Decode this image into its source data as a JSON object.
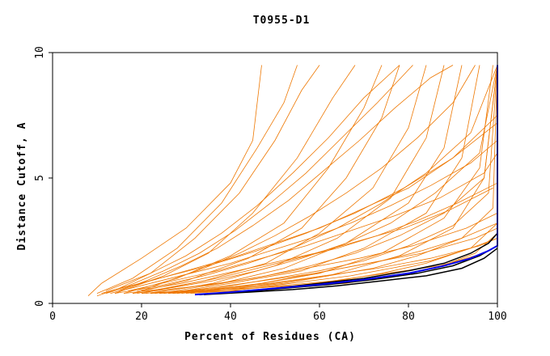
{
  "chart_data": {
    "type": "line",
    "title": "T0955-D1",
    "xlabel": "Percent of Residues (CA)",
    "ylabel": "Distance Cutoff, A",
    "xlim": [
      0,
      100
    ],
    "ylim": [
      0,
      10
    ],
    "x_ticks": [
      "0",
      "20",
      "40",
      "60",
      "80",
      "100"
    ],
    "y_ticks": [
      "0",
      "5",
      "10"
    ],
    "grid": false,
    "legend": "none",
    "colors": {
      "background": "#ffffff",
      "axis": "#000000",
      "orange": "#ee7700",
      "black": "#000000",
      "blue": "#0000ee"
    },
    "series": [
      {
        "color": "orange",
        "x": [
          8,
          11,
          20,
          30,
          40,
          45,
          47
        ],
        "y": [
          0.3,
          0.8,
          1.8,
          3.0,
          4.8,
          6.5,
          9.5
        ]
      },
      {
        "color": "orange",
        "x": [
          10,
          18,
          28,
          38,
          46,
          52,
          55
        ],
        "y": [
          0.4,
          1.0,
          2.2,
          4.0,
          6.2,
          8.0,
          9.5
        ]
      },
      {
        "color": "orange",
        "x": [
          12,
          22,
          32,
          42,
          50,
          56,
          60
        ],
        "y": [
          0.5,
          1.2,
          2.6,
          4.4,
          6.5,
          8.5,
          9.5
        ]
      },
      {
        "color": "orange",
        "x": [
          14,
          25,
          35,
          45,
          55,
          63,
          68
        ],
        "y": [
          0.4,
          1.1,
          2.0,
          3.6,
          5.8,
          8.2,
          9.5
        ]
      },
      {
        "color": "orange",
        "x": [
          16,
          28,
          40,
          52,
          62,
          70,
          74
        ],
        "y": [
          0.4,
          1.0,
          1.9,
          3.2,
          5.4,
          7.8,
          9.5
        ]
      },
      {
        "color": "orange",
        "x": [
          18,
          30,
          44,
          56,
          66,
          74,
          78
        ],
        "y": [
          0.4,
          0.9,
          1.8,
          3.0,
          5.0,
          7.4,
          9.5
        ]
      },
      {
        "color": "orange",
        "x": [
          20,
          34,
          48,
          60,
          72,
          80,
          84
        ],
        "y": [
          0.4,
          0.9,
          1.6,
          2.8,
          4.6,
          7.0,
          9.5
        ]
      },
      {
        "color": "orange",
        "x": [
          22,
          36,
          50,
          64,
          76,
          84,
          88
        ],
        "y": [
          0.4,
          0.8,
          1.5,
          2.6,
          4.2,
          6.6,
          9.5
        ]
      },
      {
        "color": "orange",
        "x": [
          24,
          38,
          52,
          66,
          80,
          88,
          92
        ],
        "y": [
          0.4,
          0.8,
          1.4,
          2.4,
          4.0,
          6.2,
          9.5
        ]
      },
      {
        "color": "orange",
        "x": [
          26,
          40,
          56,
          70,
          84,
          92,
          96
        ],
        "y": [
          0.4,
          0.8,
          1.3,
          2.2,
          3.6,
          5.8,
          9.5
        ]
      },
      {
        "color": "orange",
        "x": [
          28,
          44,
          60,
          74,
          88,
          96,
          99
        ],
        "y": [
          0.4,
          0.7,
          1.2,
          2.0,
          3.4,
          5.4,
          9.5
        ]
      },
      {
        "color": "orange",
        "x": [
          30,
          46,
          62,
          78,
          90,
          97,
          100
        ],
        "y": [
          0.4,
          0.7,
          1.1,
          1.9,
          3.0,
          5.0,
          9.5
        ]
      },
      {
        "color": "orange",
        "x": [
          14,
          24,
          34,
          44,
          54,
          64,
          74,
          84,
          94,
          100
        ],
        "y": [
          0.4,
          0.7,
          1.1,
          1.6,
          2.2,
          3.0,
          4.0,
          5.2,
          6.8,
          9.5
        ]
      },
      {
        "color": "orange",
        "x": [
          16,
          26,
          36,
          46,
          56,
          66,
          76,
          86,
          96,
          100
        ],
        "y": [
          0.4,
          0.6,
          0.9,
          1.3,
          1.8,
          2.4,
          3.2,
          4.4,
          6.0,
          9.5
        ]
      },
      {
        "color": "orange",
        "x": [
          18,
          28,
          38,
          48,
          58,
          68,
          78,
          88,
          97,
          100
        ],
        "y": [
          0.4,
          0.6,
          0.8,
          1.1,
          1.5,
          2.0,
          2.7,
          3.6,
          5.0,
          9.5
        ]
      },
      {
        "color": "orange",
        "x": [
          20,
          30,
          40,
          50,
          60,
          70,
          80,
          90,
          98,
          100
        ],
        "y": [
          0.4,
          0.5,
          0.7,
          1.0,
          1.3,
          1.7,
          2.3,
          3.1,
          4.4,
          9.5
        ]
      },
      {
        "color": "orange",
        "x": [
          22,
          32,
          42,
          52,
          62,
          72,
          82,
          92,
          99,
          100
        ],
        "y": [
          0.4,
          0.5,
          0.6,
          0.8,
          1.1,
          1.4,
          1.9,
          2.6,
          3.8,
          9.5
        ]
      },
      {
        "color": "orange",
        "x": [
          24,
          34,
          44,
          54,
          64,
          74,
          84,
          94,
          100
        ],
        "y": [
          0.4,
          0.5,
          0.6,
          0.7,
          0.9,
          1.2,
          1.6,
          2.2,
          3.2
        ]
      },
      {
        "color": "orange",
        "x": [
          26,
          36,
          46,
          56,
          66,
          76,
          86,
          95,
          100
        ],
        "y": [
          0.4,
          0.5,
          0.5,
          0.7,
          0.8,
          1.1,
          1.4,
          2.0,
          2.8
        ]
      },
      {
        "color": "orange",
        "x": [
          12,
          20,
          30,
          40,
          50,
          60,
          70,
          80,
          90,
          100
        ],
        "y": [
          0.4,
          0.8,
          1.3,
          1.8,
          2.4,
          3.0,
          3.8,
          4.6,
          5.8,
          7.5
        ]
      },
      {
        "color": "orange",
        "x": [
          13,
          24,
          35,
          46,
          57,
          68,
          79,
          90,
          100
        ],
        "y": [
          0.5,
          1.0,
          1.5,
          2.1,
          2.8,
          3.6,
          4.6,
          5.8,
          7.2
        ]
      },
      {
        "color": "orange",
        "x": [
          17,
          27,
          37,
          47,
          57,
          67,
          77,
          87,
          97,
          100
        ],
        "y": [
          0.5,
          0.9,
          1.3,
          1.8,
          2.3,
          2.9,
          3.5,
          4.2,
          5.2,
          6.0
        ]
      },
      {
        "color": "orange",
        "x": [
          19,
          29,
          39,
          49,
          59,
          69,
          79,
          89,
          99
        ],
        "y": [
          0.5,
          0.8,
          1.2,
          1.6,
          2.0,
          2.5,
          3.0,
          3.7,
          4.6
        ]
      },
      {
        "color": "orange",
        "x": [
          21,
          33,
          45,
          57,
          69,
          81,
          93,
          100
        ],
        "y": [
          0.4,
          0.7,
          1.0,
          1.4,
          1.8,
          2.3,
          3.0,
          3.6
        ]
      },
      {
        "color": "orange",
        "x": [
          23,
          35,
          47,
          59,
          71,
          83,
          95,
          100
        ],
        "y": [
          0.4,
          0.6,
          0.9,
          1.2,
          1.6,
          2.0,
          2.6,
          3.0
        ]
      },
      {
        "color": "orange",
        "x": [
          25,
          37,
          49,
          61,
          73,
          85,
          96,
          100
        ],
        "y": [
          0.4,
          0.6,
          0.8,
          1.1,
          1.4,
          1.8,
          2.3,
          2.6
        ]
      },
      {
        "color": "orange",
        "x": [
          27,
          39,
          51,
          63,
          75,
          87,
          97,
          100
        ],
        "y": [
          0.4,
          0.5,
          0.7,
          0.9,
          1.2,
          1.5,
          2.0,
          2.3
        ]
      },
      {
        "color": "orange",
        "x": [
          10,
          15,
          22,
          30,
          38,
          46,
          54,
          62,
          70,
          78
        ],
        "y": [
          0.3,
          0.6,
          1.2,
          1.9,
          2.8,
          3.9,
          5.2,
          6.6,
          8.2,
          9.5
        ]
      },
      {
        "color": "orange",
        "x": [
          11,
          17,
          25,
          33,
          41,
          49,
          57,
          65,
          73,
          81
        ],
        "y": [
          0.4,
          0.7,
          1.3,
          2.0,
          2.9,
          4.0,
          5.2,
          6.6,
          8.0,
          9.5
        ]
      },
      {
        "color": "orange",
        "x": [
          15,
          21,
          29,
          37,
          45,
          53,
          61,
          69,
          77,
          85,
          90
        ],
        "y": [
          0.5,
          0.9,
          1.5,
          2.2,
          3.1,
          4.1,
          5.3,
          6.5,
          7.8,
          9.0,
          9.5
        ]
      },
      {
        "color": "orange",
        "x": [
          20,
          26,
          34,
          42,
          50,
          58,
          66,
          74,
          82,
          90,
          95
        ],
        "y": [
          0.5,
          0.9,
          1.4,
          2.0,
          2.7,
          3.5,
          4.4,
          5.4,
          6.6,
          8.0,
          9.5
        ]
      },
      {
        "color": "orange",
        "x": [
          13,
          22,
          31,
          40,
          49,
          58,
          67,
          76,
          85,
          94,
          100
        ],
        "y": [
          0.4,
          0.8,
          1.2,
          1.6,
          2.1,
          2.6,
          3.2,
          3.9,
          4.7,
          5.6,
          6.5
        ]
      },
      {
        "color": "orange",
        "x": [
          19,
          28,
          37,
          46,
          55,
          64,
          73,
          82,
          91,
          100
        ],
        "y": [
          0.4,
          0.7,
          1.0,
          1.4,
          1.8,
          2.2,
          2.7,
          3.3,
          4.0,
          4.8
        ]
      },
      {
        "color": "orange",
        "x": [
          29,
          38,
          47,
          56,
          65,
          74,
          83,
          92,
          100
        ],
        "y": [
          0.4,
          0.6,
          0.8,
          1.1,
          1.4,
          1.7,
          2.1,
          2.6,
          3.2
        ]
      },
      {
        "color": "orange",
        "x": [
          31,
          40,
          49,
          58,
          67,
          76,
          85,
          94,
          100
        ],
        "y": [
          0.4,
          0.5,
          0.7,
          0.9,
          1.1,
          1.4,
          1.7,
          2.2,
          2.6
        ]
      },
      {
        "color": "black",
        "x": [
          33,
          40,
          50,
          60,
          70,
          80,
          88,
          94,
          98,
          100
        ],
        "y": [
          0.35,
          0.45,
          0.6,
          0.8,
          1.0,
          1.3,
          1.6,
          2.0,
          2.4,
          2.8
        ]
      },
      {
        "color": "black",
        "x": [
          33,
          42,
          52,
          62,
          72,
          82,
          90,
          96,
          100
        ],
        "y": [
          0.35,
          0.45,
          0.6,
          0.75,
          0.95,
          1.2,
          1.5,
          1.9,
          2.3
        ]
      },
      {
        "color": "black",
        "x": [
          34,
          44,
          54,
          64,
          74,
          84,
          92,
          97,
          100
        ],
        "y": [
          0.35,
          0.45,
          0.55,
          0.7,
          0.9,
          1.1,
          1.4,
          1.8,
          2.2
        ]
      },
      {
        "color": "blue",
        "x": [
          32,
          40,
          50,
          60,
          70,
          80,
          88,
          94,
          98,
          100,
          100
        ],
        "y": [
          0.35,
          0.45,
          0.6,
          0.75,
          0.95,
          1.2,
          1.5,
          1.8,
          2.1,
          2.3,
          9.5
        ]
      }
    ]
  }
}
